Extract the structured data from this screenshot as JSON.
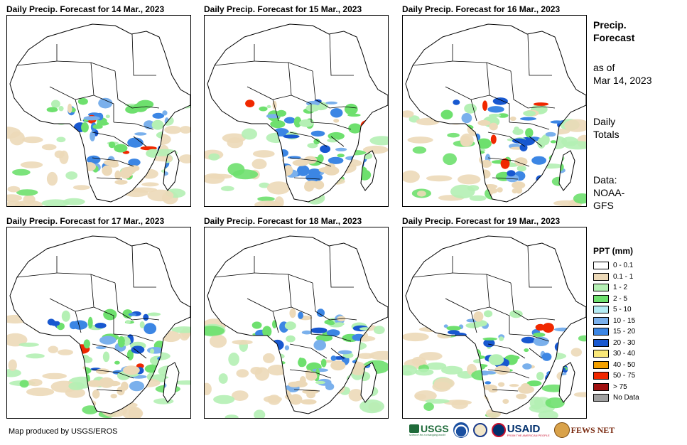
{
  "panels": [
    {
      "title": "Daily Precip. Forecast for 14 Mar., 2023"
    },
    {
      "title": "Daily Precip. Forecast for 15 Mar., 2023"
    },
    {
      "title": "Daily Precip. Forecast for 16 Mar., 2023"
    },
    {
      "title": "Daily Precip. Forecast for 17 Mar., 2023"
    },
    {
      "title": "Daily Precip. Forecast for 18 Mar., 2023"
    },
    {
      "title": "Daily Precip. Forecast for 19 Mar., 2023"
    }
  ],
  "sidebar": {
    "title_line1": "Precip.",
    "title_line2": "Forecast",
    "asof_line1": "as of",
    "asof_line2": "Mar 14, 2023",
    "totals_line1": "Daily",
    "totals_line2": "Totals",
    "data_line1": "Data:",
    "data_line2": "NOAA-",
    "data_line3": "GFS"
  },
  "legend": {
    "title": "PPT (mm)",
    "items": [
      {
        "label": "0 - 0.1",
        "color": "#ffffff"
      },
      {
        "label": "0.1 - 1",
        "color": "#ecd9b8"
      },
      {
        "label": "1 - 2",
        "color": "#b4f0b4"
      },
      {
        "label": "2 - 5",
        "color": "#6ee06e"
      },
      {
        "label": "5 - 10",
        "color": "#b4ecf4"
      },
      {
        "label": "10 - 15",
        "color": "#7ab0ec"
      },
      {
        "label": "15 - 20",
        "color": "#3c86e4"
      },
      {
        "label": "20 - 30",
        "color": "#1858d0"
      },
      {
        "label": "30 - 40",
        "color": "#fae878"
      },
      {
        "label": "40 - 50",
        "color": "#f4a000"
      },
      {
        "label": "50 - 75",
        "color": "#f02800"
      },
      {
        "label": "> 75",
        "color": "#a01010"
      },
      {
        "label": "No Data",
        "color": "#a0a0a0"
      }
    ]
  },
  "credit": "Map produced by USGS/EROS",
  "logos": {
    "usgs": "USGS",
    "usgs_tagline": "science for a changing world",
    "usaid": "USAID",
    "usaid_tagline": "FROM THE AMERICAN PEOPLE",
    "fewsnet": "FEWS NET"
  }
}
